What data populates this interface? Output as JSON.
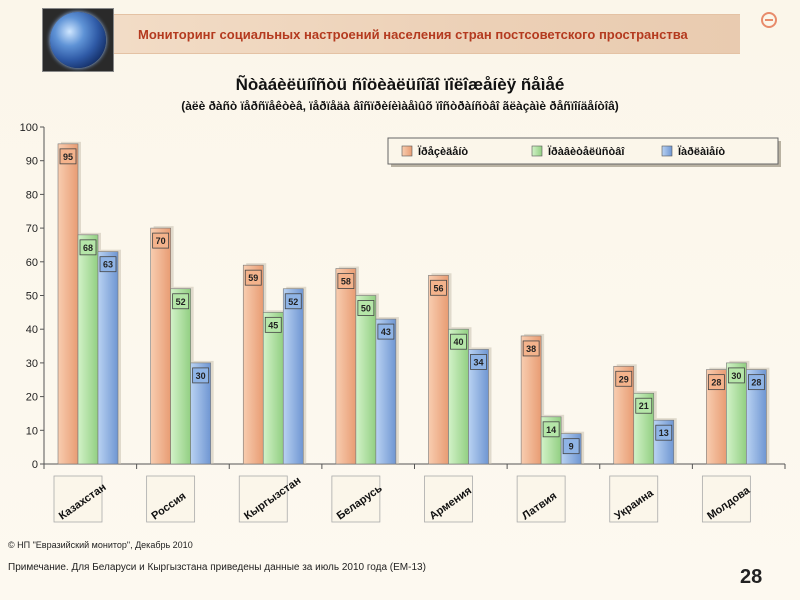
{
  "header": {
    "title": "Мониторинг социальных настроений населения стран постсоветского пространства"
  },
  "chart_data": {
    "type": "bar",
    "title": "Ñòàáèëüíîñòü ñîöèàëüíîãî ïîëîæåíèÿ ñåìåé",
    "subtitle": "(àëè ðàñò ïåðñïåêòèâ, ïåðïåäà âîñïðèíèìàåìûõ ïîñòðàíñòâî ãëàçàìè ðåñïîíäåíòîâ)",
    "categories": [
      "Казахстан",
      "Россия",
      "Кыргызстан",
      "Беларусь",
      "Армения",
      "Латвия",
      "Украина",
      "Молдова"
    ],
    "series": [
      {
        "name": "Ïðåçèäåíò",
        "color": "#f4b38c",
        "values": [
          95,
          70,
          59,
          58,
          56,
          38,
          29,
          28
        ]
      },
      {
        "name": "Ïðàâèòåëüñòâî",
        "color": "#b5e6a8",
        "values": [
          68,
          52,
          45,
          50,
          40,
          14,
          21,
          30
        ]
      },
      {
        "name": "Ïàðëàìåíò",
        "color": "#8fb4e6",
        "values": [
          63,
          30,
          52,
          43,
          34,
          9,
          13,
          28
        ]
      }
    ],
    "yticks": [
      "0",
      "10",
      "20",
      "30",
      "40",
      "50",
      "60",
      "70",
      "80",
      "90",
      "100"
    ],
    "ylim": [
      0,
      100
    ],
    "grid": false,
    "legend_position": "top-right"
  },
  "footer": {
    "source": "© НП \"Евразийский монитор\", Декабрь 2010",
    "note": "Примечание. Для Беларуси и Кыргызстана приведены данные за июль 2010 года (ЕМ-13)",
    "page_number": "28"
  }
}
